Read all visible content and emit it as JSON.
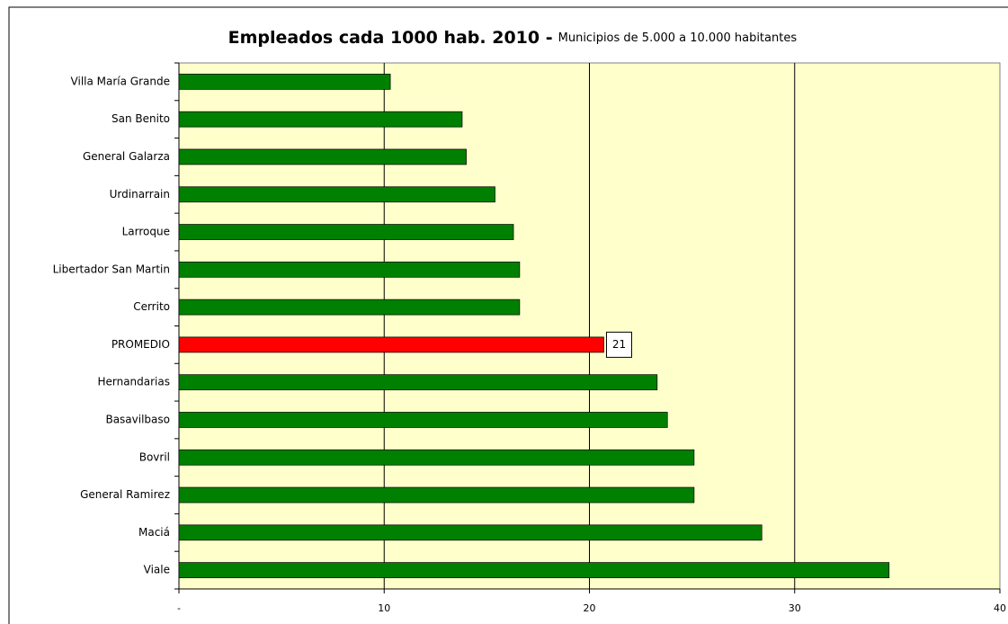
{
  "chart_data": {
    "type": "bar",
    "orientation": "horizontal",
    "title": "Empleados cada 1000 hab. 2010 -",
    "subtitle": "Municipios de 5.000 a 10.000 habitantes",
    "categories": [
      "Villa María Grande",
      "San Benito",
      "General Galarza",
      "Urdinarrain",
      "Larroque",
      "Libertador San Martin",
      "Cerrito",
      "PROMEDIO",
      "Hernandarias",
      "Basavilbaso",
      "Bovril",
      "General Ramirez",
      "Maciá",
      "Viale"
    ],
    "values": [
      10.3,
      13.8,
      14.0,
      15.4,
      16.3,
      16.6,
      16.6,
      20.7,
      23.3,
      23.8,
      25.1,
      25.1,
      28.4,
      34.6
    ],
    "value_labels": [
      null,
      null,
      null,
      null,
      null,
      null,
      null,
      "21",
      null,
      null,
      null,
      null,
      null,
      null
    ],
    "colors": [
      "#008000",
      "#008000",
      "#008000",
      "#008000",
      "#008000",
      "#008000",
      "#008000",
      "#ff0000",
      "#008000",
      "#008000",
      "#008000",
      "#008000",
      "#008000",
      "#008000"
    ],
    "xlim": [
      0,
      40
    ],
    "xticks": [
      {
        "value": 0,
        "label": "-"
      },
      10,
      20,
      30,
      40
    ],
    "grid": true,
    "background": "#ffffcc"
  }
}
